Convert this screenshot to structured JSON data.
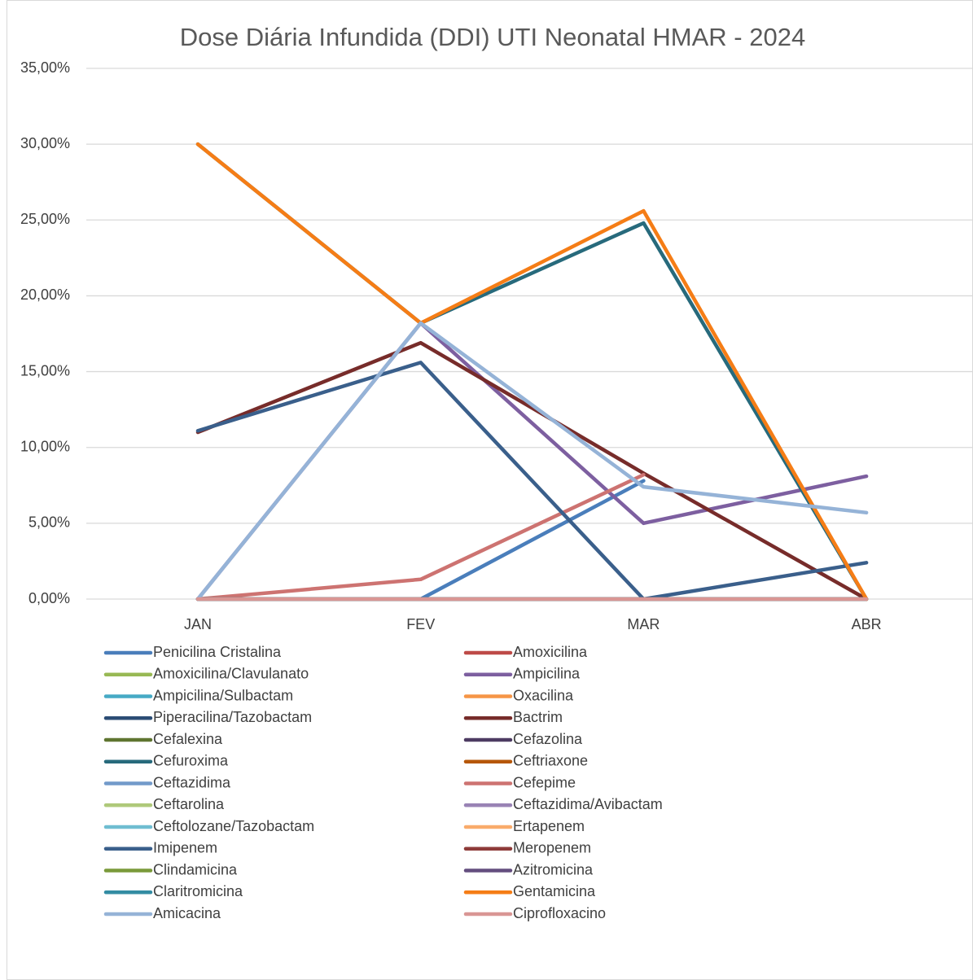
{
  "chart_data": {
    "type": "line",
    "title": "Dose Diária Infundida (DDI) UTI Neonatal HMAR - 2024",
    "categories": [
      "JAN",
      "FEV",
      "MAR",
      "ABR"
    ],
    "ylim": [
      0,
      35
    ],
    "yticks": [
      {
        "value": 0,
        "label": "0,00%"
      },
      {
        "value": 5,
        "label": "5,00%"
      },
      {
        "value": 10,
        "label": "10,00%"
      },
      {
        "value": 15,
        "label": "15,00%"
      },
      {
        "value": 20,
        "label": "20,00%"
      },
      {
        "value": 25,
        "label": "25,00%"
      },
      {
        "value": 30,
        "label": "30,00%"
      },
      {
        "value": 35,
        "label": "35,00%"
      }
    ],
    "grid": true,
    "series": [
      {
        "name": "Penicilina Cristalina",
        "color": "#4a7ebb",
        "values": [
          0,
          0,
          7.8,
          null
        ]
      },
      {
        "name": "Amoxicilina",
        "color": "#be4b48",
        "values": [
          0,
          0,
          0,
          0
        ]
      },
      {
        "name": "Amoxicilina/Clavulanato",
        "color": "#98b954",
        "values": [
          0,
          0,
          0,
          0
        ]
      },
      {
        "name": "Ampicilina",
        "color": "#7d5fa0",
        "values": [
          0,
          18.2,
          5,
          8.1
        ]
      },
      {
        "name": "Ampicilina/Sulbactam",
        "color": "#46aac5",
        "values": [
          0,
          0,
          0,
          0
        ]
      },
      {
        "name": "Oxacilina",
        "color": "#f69546",
        "values": [
          0,
          0,
          0,
          0
        ]
      },
      {
        "name": "Piperacilina/Tazobactam",
        "color": "#2c4d75",
        "values": [
          0,
          0,
          0,
          0
        ]
      },
      {
        "name": "Bactrim",
        "color": "#772c2a",
        "values": [
          11,
          16.9,
          8.3,
          0
        ]
      },
      {
        "name": "Cefalexina",
        "color": "#5f7530",
        "values": [
          0,
          0,
          0,
          0
        ]
      },
      {
        "name": "Cefazolina",
        "color": "#4d3b62",
        "values": [
          0,
          0,
          0,
          0
        ]
      },
      {
        "name": "Cefuroxima",
        "color": "#276a7c",
        "values": [
          30,
          18.2,
          24.8,
          0
        ]
      },
      {
        "name": "Ceftriaxone",
        "color": "#b65708",
        "values": [
          0,
          0,
          0,
          0
        ]
      },
      {
        "name": "Ceftazidima",
        "color": "#729aca",
        "values": [
          0,
          0,
          0,
          0
        ]
      },
      {
        "name": "Cefepime",
        "color": "#cd7371",
        "values": [
          0,
          1.3,
          8.2,
          null
        ]
      },
      {
        "name": "Ceftarolina",
        "color": "#afc97a",
        "values": [
          0,
          0,
          0,
          0
        ]
      },
      {
        "name": "Ceftazidima/Avibactam",
        "color": "#9983b5",
        "values": [
          0,
          0,
          0,
          0
        ]
      },
      {
        "name": "Ceftolozane/Tazobactam",
        "color": "#6fbdd1",
        "values": [
          0,
          0,
          0,
          0
        ]
      },
      {
        "name": "Ertapenem",
        "color": "#f9ab6b",
        "values": [
          0,
          0,
          0,
          0
        ]
      },
      {
        "name": "Imipenem",
        "color": "#3a5f8b",
        "values": [
          11.1,
          15.6,
          0,
          2.4
        ]
      },
      {
        "name": "Meropenem",
        "color": "#8e3b39",
        "values": [
          0,
          0,
          0,
          0
        ]
      },
      {
        "name": "Clindamicina",
        "color": "#7a9a3a",
        "values": [
          0,
          0,
          0,
          0
        ]
      },
      {
        "name": "Azitromicina",
        "color": "#644e7f",
        "values": [
          0,
          0,
          0,
          0
        ]
      },
      {
        "name": "Claritromicina",
        "color": "#338ca3",
        "values": [
          0,
          0,
          0,
          0
        ]
      },
      {
        "name": "Gentamicina",
        "color": "#f57d16",
        "values": [
          30,
          18.2,
          25.6,
          0
        ]
      },
      {
        "name": "Amicacina",
        "color": "#95b3d7",
        "values": [
          0,
          18.2,
          7.4,
          5.7
        ]
      },
      {
        "name": "Ciprofloxacino",
        "color": "#d99694",
        "values": [
          0,
          0,
          0,
          0
        ]
      }
    ]
  }
}
